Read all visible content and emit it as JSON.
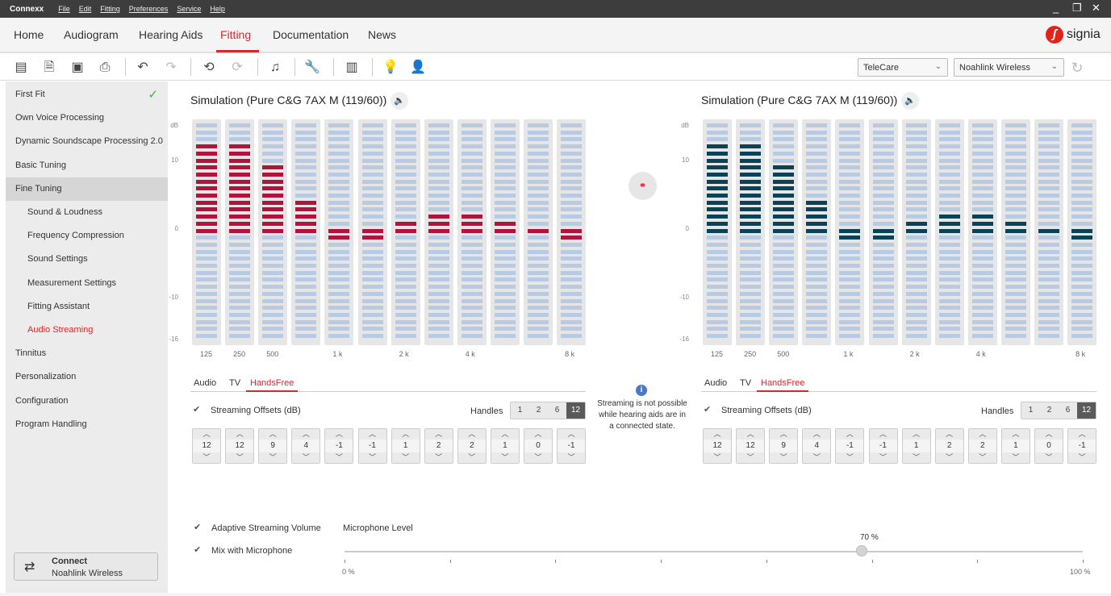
{
  "titlebar": {
    "app": "Connexx",
    "menu": [
      "File",
      "Edit",
      "Fitting",
      "Preferences",
      "Service",
      "Help"
    ],
    "controls": [
      "_",
      "❐",
      "✕"
    ]
  },
  "nav": {
    "tabs": [
      "Home",
      "Audiogram",
      "Hearing Aids",
      "Fitting",
      "Documentation",
      "News"
    ],
    "active": "Fitting",
    "logo_text": "signia"
  },
  "toolbar": {
    "program_dropdown": "TeleCare",
    "interface_dropdown": "Noahlink Wireless"
  },
  "sidebar": {
    "items": [
      {
        "label": "First Fit",
        "done": true
      },
      {
        "label": "Own Voice Processing"
      },
      {
        "label": "Dynamic Soundscape Processing 2.0"
      },
      {
        "label": "Basic Tuning"
      },
      {
        "label": "Fine Tuning",
        "selected": true
      },
      {
        "label": "Sound & Loudness",
        "sub": true
      },
      {
        "label": "Frequency Compression",
        "sub": true
      },
      {
        "label": "Sound Settings",
        "sub": true
      },
      {
        "label": "Measurement Settings",
        "sub": true
      },
      {
        "label": "Fitting Assistant",
        "sub": true
      },
      {
        "label": "Audio Streaming",
        "sub": true,
        "active": true
      },
      {
        "label": "Tinnitus"
      },
      {
        "label": "Personalization"
      },
      {
        "label": "Configuration"
      },
      {
        "label": "Program Handling"
      }
    ],
    "connect": {
      "title": "Connect",
      "subtitle": "Noahlink Wireless"
    }
  },
  "colors": {
    "right_ear": "#b0133b",
    "left_ear": "#0c4255",
    "accent": "#d8272d",
    "bar_bg": "#b8cbe3"
  },
  "simulation": {
    "title": "Simulation (Pure C&G 7AX M (119/60))",
    "y_labels": [
      "dB",
      "10",
      "0",
      "-10",
      "-16"
    ],
    "x_labels": [
      "125",
      "250",
      "500",
      "1 k",
      "2 k",
      "4 k",
      "8 k"
    ],
    "values": [
      12,
      12,
      9,
      4,
      -1,
      -1,
      1,
      2,
      2,
      1,
      0,
      -1
    ]
  },
  "tabs": [
    "Audio",
    "TV",
    "HandsFree"
  ],
  "active_tab": "HandsFree",
  "offsets": {
    "label": "Streaming Offsets (dB)",
    "handles_label": "Handles",
    "handles": [
      "1",
      "2",
      "6",
      "12"
    ],
    "active_handle": "12",
    "values": [
      "12",
      "12",
      "9",
      "4",
      "-1",
      "-1",
      "1",
      "2",
      "2",
      "1",
      "0",
      "-1"
    ]
  },
  "info": {
    "text": "Streaming is not possible while hearing aids are in a connected state."
  },
  "bottom": {
    "adaptive": "Adaptive Streaming Volume",
    "mix": "Mix with Microphone",
    "mic_level_label": "Microphone Level",
    "mic_level": "70 %",
    "min": "0 %",
    "max": "100 %",
    "level_value": 70
  }
}
